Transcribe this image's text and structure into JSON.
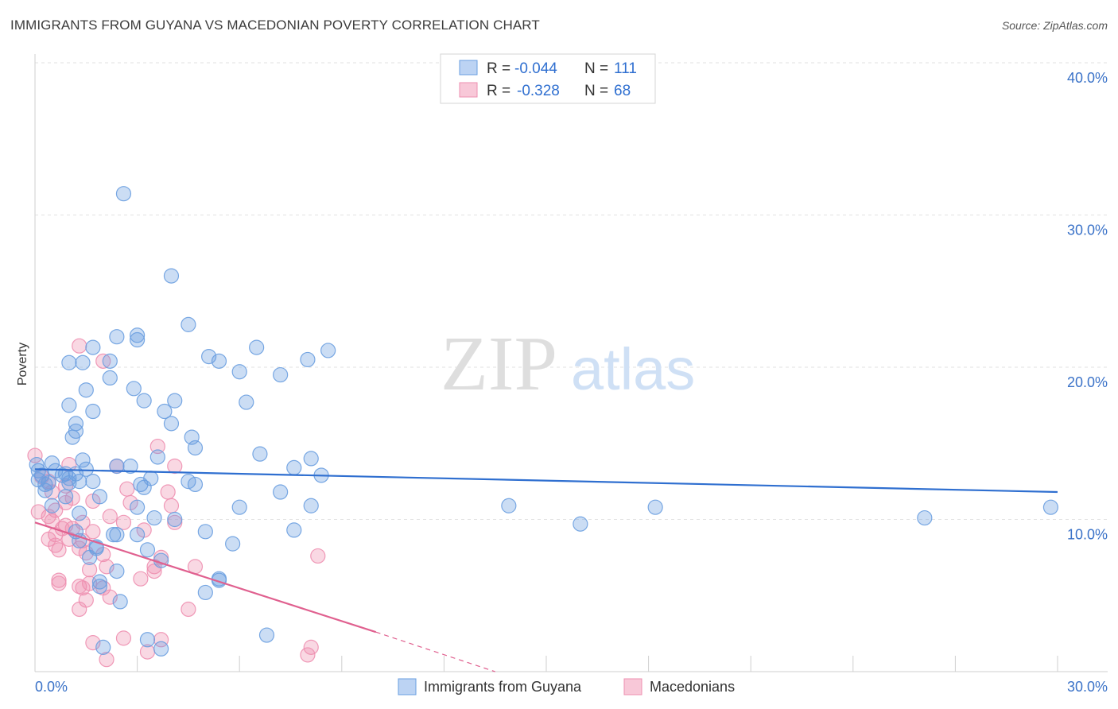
{
  "title": "IMMIGRANTS FROM GUYANA VS MACEDONIAN POVERTY CORRELATION CHART",
  "source": "Source: ZipAtlas.com",
  "watermark": {
    "zip": "ZIP",
    "atlas": "atlas"
  },
  "colors": {
    "blue": "#6a9fe0",
    "blue_line": "#2f6fd0",
    "pink": "#ee8fb0",
    "pink_line": "#e0608f",
    "axis_label": "#3a72c8"
  },
  "stats": [
    {
      "r_label": "R =",
      "r": "-0.044",
      "n_label": "N =",
      "n": "111"
    },
    {
      "r_label": "R =",
      "r": "-0.328",
      "n_label": "N =",
      "n": "68"
    }
  ],
  "chart_data": {
    "type": "scatter",
    "title": "IMMIGRANTS FROM GUYANA VS MACEDONIAN POVERTY CORRELATION CHART",
    "xlabel": "",
    "ylabel": "Poverty",
    "xlim": [
      0,
      30
    ],
    "ylim": [
      0,
      40
    ],
    "x_tick_labels": [
      "0.0%",
      "30.0%"
    ],
    "y_ticks": [
      10,
      20,
      30,
      40
    ],
    "y_tick_labels": [
      "10.0%",
      "20.0%",
      "30.0%",
      "40.0%"
    ],
    "legend": [
      "Immigrants from Guyana",
      "Macedonians"
    ],
    "series": [
      {
        "name": "Immigrants from Guyana",
        "color": "#6a9fe0",
        "trend": {
          "x": [
            0,
            30
          ],
          "y": [
            13.3,
            11.8
          ]
        },
        "points": [
          [
            2.6,
            31.4
          ],
          [
            4.0,
            26.0
          ],
          [
            4.5,
            22.8
          ],
          [
            2.4,
            22.0
          ],
          [
            3.0,
            21.8
          ],
          [
            3.0,
            22.1
          ],
          [
            6.5,
            21.3
          ],
          [
            8.6,
            21.1
          ],
          [
            1.7,
            21.3
          ],
          [
            2.2,
            20.4
          ],
          [
            1.0,
            20.3
          ],
          [
            1.4,
            20.3
          ],
          [
            5.1,
            20.7
          ],
          [
            5.4,
            20.4
          ],
          [
            8.0,
            20.5
          ],
          [
            7.2,
            19.5
          ],
          [
            6.0,
            19.7
          ],
          [
            2.2,
            19.3
          ],
          [
            1.5,
            18.5
          ],
          [
            2.9,
            18.6
          ],
          [
            3.2,
            17.8
          ],
          [
            4.1,
            17.8
          ],
          [
            6.2,
            17.7
          ],
          [
            1.0,
            17.5
          ],
          [
            1.7,
            17.1
          ],
          [
            3.8,
            17.1
          ],
          [
            1.2,
            16.3
          ],
          [
            4.0,
            16.3
          ],
          [
            1.2,
            15.8
          ],
          [
            1.1,
            15.4
          ],
          [
            4.6,
            15.4
          ],
          [
            4.7,
            14.7
          ],
          [
            6.6,
            14.3
          ],
          [
            8.1,
            14.0
          ],
          [
            3.6,
            14.1
          ],
          [
            1.4,
            13.9
          ],
          [
            0.5,
            13.7
          ],
          [
            2.4,
            13.5
          ],
          [
            2.8,
            13.5
          ],
          [
            1.5,
            13.3
          ],
          [
            7.6,
            13.4
          ],
          [
            8.4,
            12.9
          ],
          [
            0.1,
            13.2
          ],
          [
            0.6,
            13.2
          ],
          [
            0.9,
            13.0
          ],
          [
            1.2,
            13.0
          ],
          [
            0.2,
            12.9
          ],
          [
            0.8,
            12.9
          ],
          [
            1.0,
            12.7
          ],
          [
            1.3,
            12.5
          ],
          [
            0.4,
            12.4
          ],
          [
            1.0,
            12.4
          ],
          [
            1.7,
            12.5
          ],
          [
            0.3,
            12.3
          ],
          [
            3.4,
            12.7
          ],
          [
            3.1,
            12.3
          ],
          [
            4.5,
            12.5
          ],
          [
            4.7,
            12.3
          ],
          [
            3.2,
            12.1
          ],
          [
            7.2,
            11.8
          ],
          [
            0.3,
            11.9
          ],
          [
            0.9,
            11.5
          ],
          [
            1.9,
            11.5
          ],
          [
            0.5,
            10.9
          ],
          [
            3.0,
            10.8
          ],
          [
            6.0,
            10.8
          ],
          [
            8.1,
            10.9
          ],
          [
            13.9,
            10.9
          ],
          [
            18.2,
            10.8
          ],
          [
            29.8,
            10.8
          ],
          [
            1.3,
            10.4
          ],
          [
            3.5,
            10.1
          ],
          [
            4.1,
            10.0
          ],
          [
            16.0,
            9.7
          ],
          [
            26.1,
            10.1
          ],
          [
            7.6,
            9.3
          ],
          [
            5.0,
            9.2
          ],
          [
            1.2,
            9.2
          ],
          [
            2.3,
            9.0
          ],
          [
            2.4,
            9.0
          ],
          [
            3.0,
            9.0
          ],
          [
            1.3,
            8.6
          ],
          [
            5.8,
            8.4
          ],
          [
            1.8,
            8.2
          ],
          [
            1.8,
            8.1
          ],
          [
            3.3,
            8.0
          ],
          [
            1.6,
            7.5
          ],
          [
            3.7,
            7.3
          ],
          [
            2.4,
            6.6
          ],
          [
            5.4,
            6.1
          ],
          [
            5.4,
            6.0
          ],
          [
            1.9,
            5.9
          ],
          [
            1.9,
            5.6
          ],
          [
            5.0,
            5.2
          ],
          [
            2.5,
            4.6
          ],
          [
            6.8,
            2.4
          ],
          [
            3.3,
            2.1
          ],
          [
            3.7,
            1.5
          ],
          [
            2.0,
            1.6
          ],
          [
            0.05,
            13.6
          ],
          [
            0.1,
            12.6
          ]
        ]
      },
      {
        "name": "Macedonians",
        "color": "#ee8fb0",
        "trend": {
          "x": [
            0,
            10
          ],
          "y": [
            9.8,
            2.6
          ]
        },
        "trend_dashed": {
          "x": [
            10,
            13.5
          ],
          "y": [
            2.6,
            0.0
          ]
        },
        "points": [
          [
            1.3,
            21.4
          ],
          [
            2.0,
            20.4
          ],
          [
            3.6,
            14.8
          ],
          [
            0.0,
            14.2
          ],
          [
            1.0,
            13.6
          ],
          [
            2.4,
            13.5
          ],
          [
            4.1,
            13.5
          ],
          [
            0.2,
            12.8
          ],
          [
            0.4,
            12.5
          ],
          [
            0.9,
            12.2
          ],
          [
            2.7,
            12.0
          ],
          [
            3.9,
            11.8
          ],
          [
            0.5,
            11.8
          ],
          [
            1.1,
            11.4
          ],
          [
            1.7,
            11.2
          ],
          [
            0.9,
            11.1
          ],
          [
            2.8,
            11.1
          ],
          [
            4.0,
            10.9
          ],
          [
            0.6,
            10.6
          ],
          [
            0.1,
            10.5
          ],
          [
            0.4,
            10.2
          ],
          [
            2.2,
            10.2
          ],
          [
            0.5,
            9.9
          ],
          [
            2.6,
            9.8
          ],
          [
            4.1,
            9.8
          ],
          [
            1.4,
            9.8
          ],
          [
            0.9,
            9.6
          ],
          [
            0.8,
            9.4
          ],
          [
            1.1,
            9.4
          ],
          [
            3.2,
            9.3
          ],
          [
            1.7,
            9.2
          ],
          [
            0.6,
            9.0
          ],
          [
            0.4,
            8.7
          ],
          [
            1.0,
            8.7
          ],
          [
            1.4,
            8.6
          ],
          [
            1.3,
            8.1
          ],
          [
            0.7,
            8.0
          ],
          [
            0.6,
            8.3
          ],
          [
            1.5,
            7.8
          ],
          [
            2.0,
            7.7
          ],
          [
            3.7,
            7.5
          ],
          [
            8.3,
            7.6
          ],
          [
            2.1,
            6.9
          ],
          [
            3.5,
            6.9
          ],
          [
            4.7,
            6.9
          ],
          [
            1.6,
            6.7
          ],
          [
            3.5,
            6.6
          ],
          [
            3.1,
            6.1
          ],
          [
            0.7,
            6.0
          ],
          [
            0.7,
            5.8
          ],
          [
            1.3,
            5.6
          ],
          [
            1.6,
            5.8
          ],
          [
            2.0,
            5.5
          ],
          [
            1.4,
            5.5
          ],
          [
            2.2,
            4.9
          ],
          [
            1.5,
            4.7
          ],
          [
            1.3,
            4.1
          ],
          [
            4.5,
            4.1
          ],
          [
            2.6,
            2.2
          ],
          [
            3.7,
            2.1
          ],
          [
            1.7,
            1.9
          ],
          [
            8.1,
            1.6
          ],
          [
            3.3,
            1.3
          ],
          [
            8.0,
            1.1
          ],
          [
            2.1,
            0.8
          ]
        ]
      }
    ]
  }
}
